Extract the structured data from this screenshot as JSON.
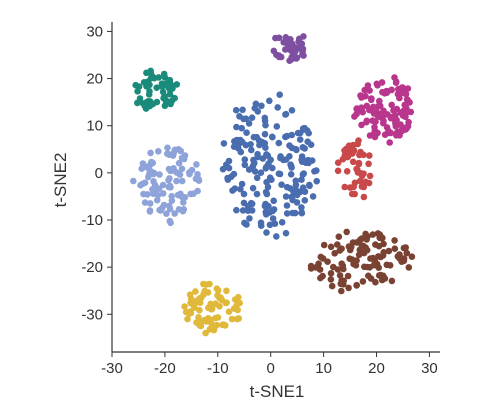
{
  "chart_data": {
    "type": "scatter",
    "title": "",
    "xlabel": "t-SNE1",
    "ylabel": "t-SNE2",
    "xlim": [
      -30,
      32
    ],
    "ylim": [
      -38,
      32
    ],
    "xticks": [
      -30,
      -20,
      -10,
      0,
      10,
      20,
      30
    ],
    "yticks": [
      -30,
      -20,
      -10,
      0,
      10,
      20,
      30
    ],
    "grid": false,
    "legend": "none",
    "point_count_note": "clusters approximated from the scatter",
    "series": [
      {
        "color": "#1a8a7a",
        "center": [
          -21.5,
          17.5
        ],
        "spread": [
          4.2,
          4.0
        ],
        "count": 55
      },
      {
        "color": "#8da3d9",
        "center": [
          -19.5,
          -2.0
        ],
        "spread": [
          6.0,
          7.8
        ],
        "count": 95
      },
      {
        "color": "#4a6db0",
        "center": [
          0.0,
          1.5
        ],
        "spread": [
          8.5,
          14.0
        ],
        "count": 190
      },
      {
        "color": "#7e4fa1",
        "center": [
          3.5,
          26.5
        ],
        "spread": [
          3.3,
          3.0
        ],
        "count": 38
      },
      {
        "color": "#b8368c",
        "center": [
          21.5,
          13.5
        ],
        "spread": [
          5.3,
          6.8
        ],
        "count": 110
      },
      {
        "color": "#c9484a",
        "center": [
          16.0,
          0.0
        ],
        "spread": [
          3.3,
          6.5
        ],
        "count": 50
      },
      {
        "color": "#7a4233",
        "center": [
          17.5,
          -19.0
        ],
        "spread": [
          9.5,
          6.5
        ],
        "count": 110
      },
      {
        "color": "#e0b93a",
        "center": [
          -11.0,
          -28.5
        ],
        "spread": [
          5.2,
          5.2
        ],
        "count": 75
      }
    ]
  }
}
